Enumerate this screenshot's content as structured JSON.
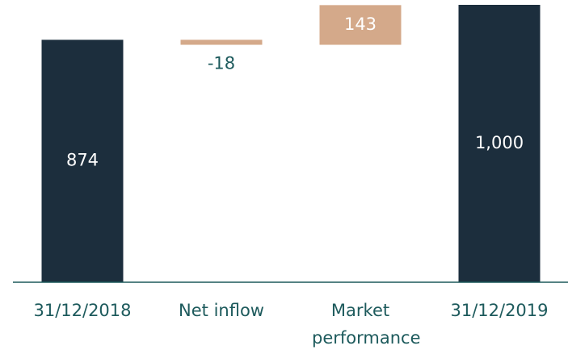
{
  "chart_data": {
    "type": "waterfall",
    "categories": [
      "31/12/2018",
      "Net inflow",
      "Market performance",
      "31/12/2019"
    ],
    "values": [
      874,
      -18,
      143,
      1000
    ],
    "value_labels": [
      "874",
      "-18",
      "143",
      "1,000"
    ],
    "colors": {
      "total": "#1c2e3d",
      "change": "#d4a98a"
    },
    "ylim": [
      0,
      1000
    ]
  }
}
